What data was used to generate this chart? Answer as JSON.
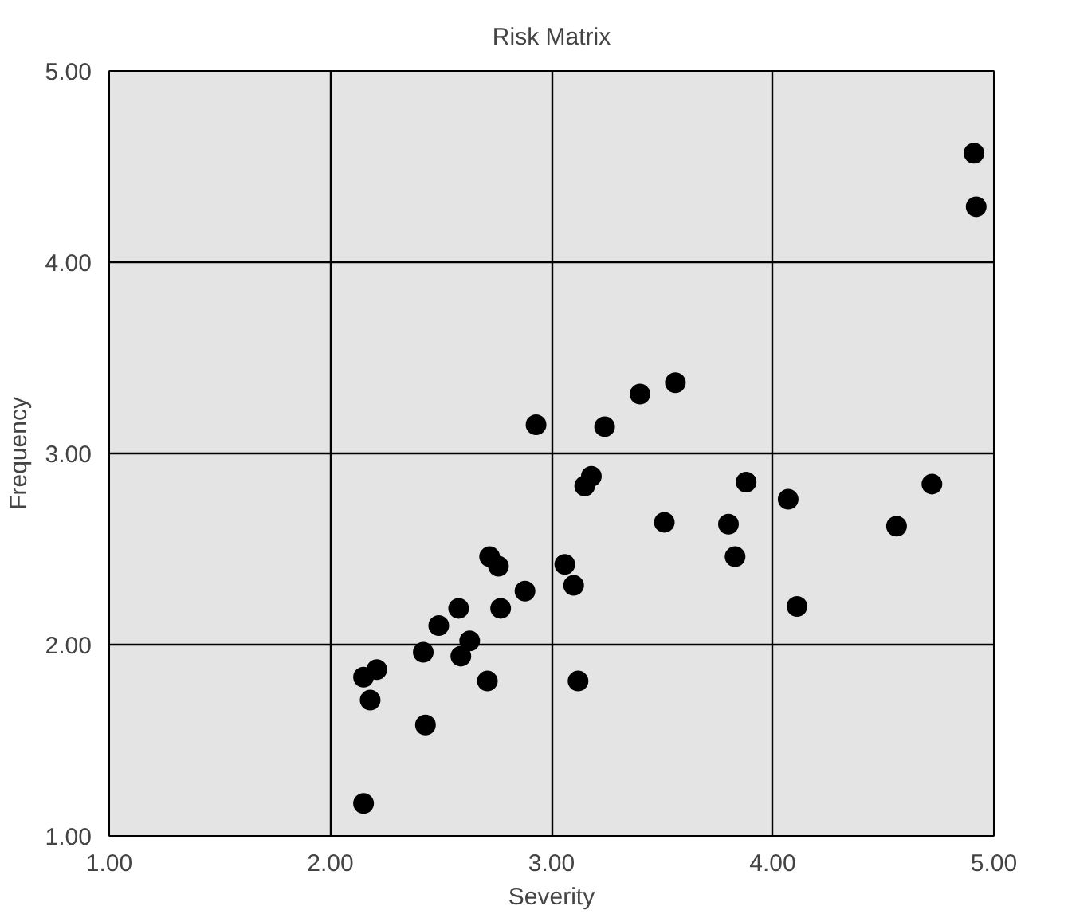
{
  "chart_data": {
    "type": "scatter",
    "title": "Risk Matrix",
    "xlabel": "Severity",
    "ylabel": "Frequency",
    "marker": "circle",
    "grid": true,
    "xlim": [
      1,
      5
    ],
    "ylim": [
      1,
      5
    ],
    "xticks": [
      {
        "value": 1,
        "label": "1.00"
      },
      {
        "value": 2,
        "label": "2.00"
      },
      {
        "value": 3,
        "label": "3.00"
      },
      {
        "value": 4,
        "label": "4.00"
      },
      {
        "value": 5,
        "label": "5.00"
      }
    ],
    "yticks": [
      {
        "value": 1,
        "label": "1.00"
      },
      {
        "value": 2,
        "label": "2.00"
      },
      {
        "value": 3,
        "label": "3.00"
      },
      {
        "value": 4,
        "label": "4.00"
      },
      {
        "value": 5,
        "label": "5.00"
      }
    ],
    "series": [
      {
        "color": "#000000",
        "x": [
          4.91,
          4.92,
          3.4,
          3.56,
          2.93,
          3.24,
          3.18,
          3.15,
          3.88,
          4.07,
          4.72,
          3.51,
          3.8,
          4.56,
          3.83,
          2.72,
          2.76,
          3.06,
          3.1,
          2.88,
          2.77,
          4.11,
          2.58,
          2.49,
          2.63,
          2.59,
          2.42,
          2.21,
          2.15,
          2.18,
          2.71,
          3.12,
          2.43,
          2.15
        ],
        "values": [
          4.57,
          4.29,
          3.31,
          3.37,
          3.15,
          3.14,
          2.88,
          2.83,
          2.85,
          2.76,
          2.84,
          2.64,
          2.63,
          2.62,
          2.46,
          2.46,
          2.41,
          2.42,
          2.31,
          2.28,
          2.19,
          2.2,
          2.19,
          2.1,
          2.02,
          1.94,
          1.96,
          1.87,
          1.83,
          1.71,
          1.81,
          1.81,
          1.58,
          1.17
        ]
      }
    ]
  }
}
